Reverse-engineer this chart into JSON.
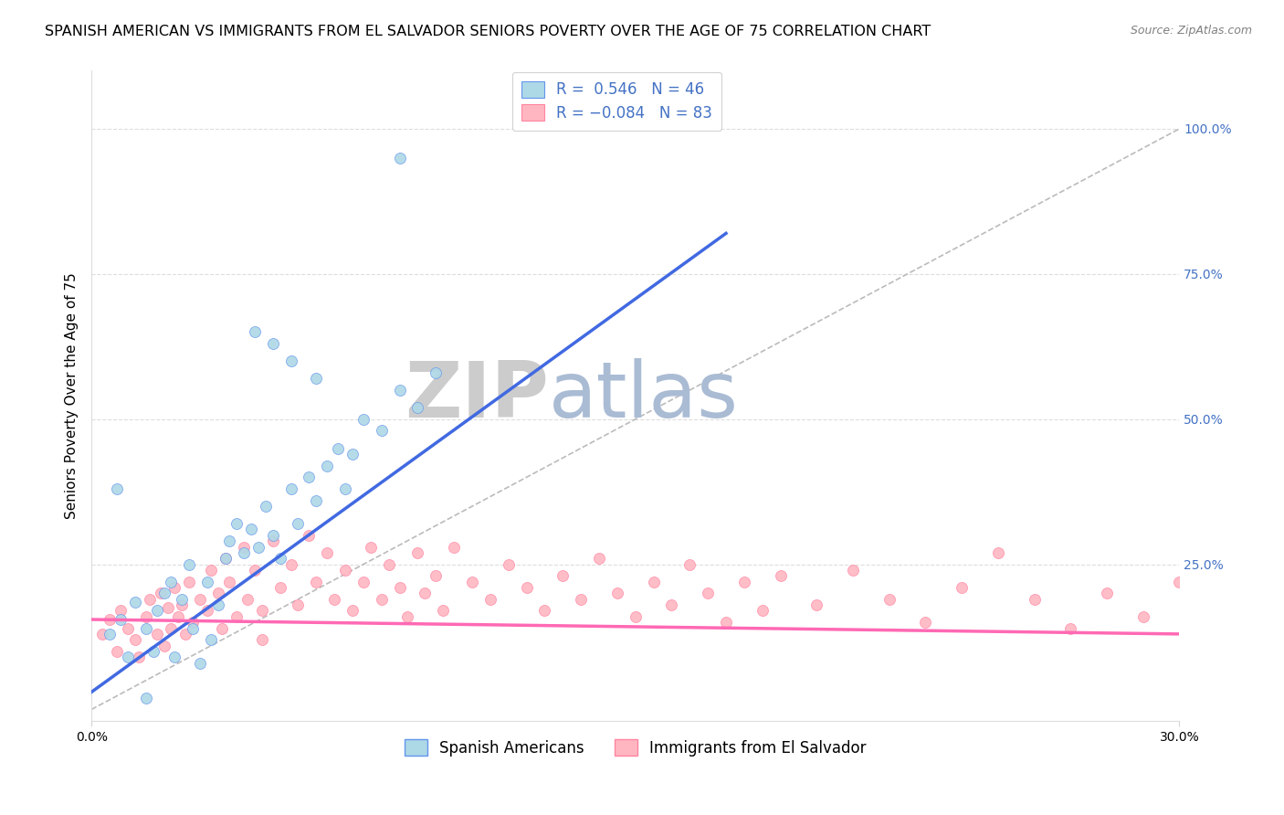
{
  "title": "SPANISH AMERICAN VS IMMIGRANTS FROM EL SALVADOR SENIORS POVERTY OVER THE AGE OF 75 CORRELATION CHART",
  "source": "Source: ZipAtlas.com",
  "ylabel": "Seniors Poverty Over the Age of 75",
  "xlim": [
    0.0,
    0.3
  ],
  "ylim": [
    -0.02,
    1.1
  ],
  "blue_R": 0.546,
  "blue_N": 46,
  "pink_R": -0.084,
  "pink_N": 83,
  "blue_color": "#ADD8E6",
  "blue_edge_color": "#6495ED",
  "blue_line_color": "#4169E1",
  "pink_color": "#FFB6C1",
  "pink_edge_color": "#FF85A1",
  "pink_line_color": "#FF69B4",
  "diagonal_color": "#BBBBBB",
  "watermark_zip_color": "#CCCCCC",
  "watermark_atlas_color": "#99BBDD",
  "legend_label_blue": "Spanish Americans",
  "legend_label_pink": "Immigrants from El Salvador",
  "title_fontsize": 11.5,
  "axis_label_fontsize": 11,
  "tick_fontsize": 10,
  "legend_fontsize": 12,
  "blue_line_x0": 0.0,
  "blue_line_x1": 0.175,
  "blue_line_y0": 0.03,
  "blue_line_y1": 0.82,
  "pink_line_x0": 0.0,
  "pink_line_x1": 0.3,
  "pink_line_y0": 0.155,
  "pink_line_y1": 0.13,
  "blue_points": [
    [
      0.005,
      0.13
    ],
    [
      0.008,
      0.155
    ],
    [
      0.01,
      0.09
    ],
    [
      0.012,
      0.185
    ],
    [
      0.015,
      0.14
    ],
    [
      0.017,
      0.1
    ],
    [
      0.018,
      0.17
    ],
    [
      0.02,
      0.2
    ],
    [
      0.022,
      0.22
    ],
    [
      0.023,
      0.09
    ],
    [
      0.025,
      0.19
    ],
    [
      0.027,
      0.25
    ],
    [
      0.028,
      0.14
    ],
    [
      0.03,
      0.08
    ],
    [
      0.032,
      0.22
    ],
    [
      0.033,
      0.12
    ],
    [
      0.035,
      0.18
    ],
    [
      0.037,
      0.26
    ],
    [
      0.038,
      0.29
    ],
    [
      0.04,
      0.32
    ],
    [
      0.042,
      0.27
    ],
    [
      0.044,
      0.31
    ],
    [
      0.046,
      0.28
    ],
    [
      0.048,
      0.35
    ],
    [
      0.05,
      0.3
    ],
    [
      0.052,
      0.26
    ],
    [
      0.055,
      0.38
    ],
    [
      0.057,
      0.32
    ],
    [
      0.06,
      0.4
    ],
    [
      0.062,
      0.36
    ],
    [
      0.065,
      0.42
    ],
    [
      0.068,
      0.45
    ],
    [
      0.07,
      0.38
    ],
    [
      0.072,
      0.44
    ],
    [
      0.075,
      0.5
    ],
    [
      0.08,
      0.48
    ],
    [
      0.085,
      0.55
    ],
    [
      0.09,
      0.52
    ],
    [
      0.095,
      0.58
    ],
    [
      0.05,
      0.63
    ],
    [
      0.062,
      0.57
    ],
    [
      0.045,
      0.65
    ],
    [
      0.055,
      0.6
    ],
    [
      0.085,
      0.95
    ],
    [
      0.007,
      0.38
    ],
    [
      0.015,
      0.02
    ]
  ],
  "pink_points": [
    [
      0.003,
      0.13
    ],
    [
      0.005,
      0.155
    ],
    [
      0.007,
      0.1
    ],
    [
      0.008,
      0.17
    ],
    [
      0.01,
      0.14
    ],
    [
      0.012,
      0.12
    ],
    [
      0.013,
      0.09
    ],
    [
      0.015,
      0.16
    ],
    [
      0.016,
      0.19
    ],
    [
      0.018,
      0.13
    ],
    [
      0.019,
      0.2
    ],
    [
      0.02,
      0.11
    ],
    [
      0.021,
      0.175
    ],
    [
      0.022,
      0.14
    ],
    [
      0.023,
      0.21
    ],
    [
      0.024,
      0.16
    ],
    [
      0.025,
      0.18
    ],
    [
      0.026,
      0.13
    ],
    [
      0.027,
      0.22
    ],
    [
      0.028,
      0.15
    ],
    [
      0.03,
      0.19
    ],
    [
      0.032,
      0.17
    ],
    [
      0.033,
      0.24
    ],
    [
      0.035,
      0.2
    ],
    [
      0.036,
      0.14
    ],
    [
      0.037,
      0.26
    ],
    [
      0.038,
      0.22
    ],
    [
      0.04,
      0.16
    ],
    [
      0.042,
      0.28
    ],
    [
      0.043,
      0.19
    ],
    [
      0.045,
      0.24
    ],
    [
      0.047,
      0.17
    ],
    [
      0.05,
      0.29
    ],
    [
      0.052,
      0.21
    ],
    [
      0.055,
      0.25
    ],
    [
      0.057,
      0.18
    ],
    [
      0.06,
      0.3
    ],
    [
      0.062,
      0.22
    ],
    [
      0.065,
      0.27
    ],
    [
      0.067,
      0.19
    ],
    [
      0.07,
      0.24
    ],
    [
      0.072,
      0.17
    ],
    [
      0.075,
      0.22
    ],
    [
      0.077,
      0.28
    ],
    [
      0.08,
      0.19
    ],
    [
      0.082,
      0.25
    ],
    [
      0.085,
      0.21
    ],
    [
      0.087,
      0.16
    ],
    [
      0.09,
      0.27
    ],
    [
      0.092,
      0.2
    ],
    [
      0.095,
      0.23
    ],
    [
      0.097,
      0.17
    ],
    [
      0.1,
      0.28
    ],
    [
      0.105,
      0.22
    ],
    [
      0.11,
      0.19
    ],
    [
      0.115,
      0.25
    ],
    [
      0.12,
      0.21
    ],
    [
      0.125,
      0.17
    ],
    [
      0.13,
      0.23
    ],
    [
      0.135,
      0.19
    ],
    [
      0.14,
      0.26
    ],
    [
      0.145,
      0.2
    ],
    [
      0.15,
      0.16
    ],
    [
      0.155,
      0.22
    ],
    [
      0.16,
      0.18
    ],
    [
      0.165,
      0.25
    ],
    [
      0.17,
      0.2
    ],
    [
      0.175,
      0.15
    ],
    [
      0.18,
      0.22
    ],
    [
      0.185,
      0.17
    ],
    [
      0.19,
      0.23
    ],
    [
      0.2,
      0.18
    ],
    [
      0.21,
      0.24
    ],
    [
      0.22,
      0.19
    ],
    [
      0.23,
      0.15
    ],
    [
      0.24,
      0.21
    ],
    [
      0.25,
      0.27
    ],
    [
      0.26,
      0.19
    ],
    [
      0.27,
      0.14
    ],
    [
      0.28,
      0.2
    ],
    [
      0.29,
      0.16
    ],
    [
      0.3,
      0.22
    ],
    [
      0.047,
      0.12
    ]
  ]
}
